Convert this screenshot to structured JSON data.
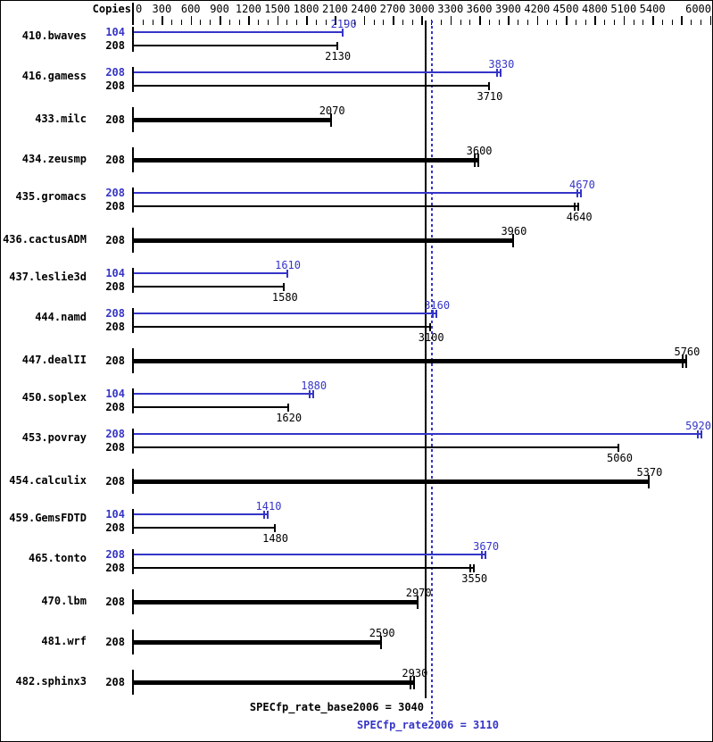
{
  "colors": {
    "peak_blue": "#3535c8",
    "base_black": "#000000",
    "background": "#ffffff",
    "border_black": "#000000"
  },
  "chart_data": {
    "type": "bar",
    "orientation": "horizontal",
    "xlabel_header": "Copies",
    "xlim": [
      0,
      6200
    ],
    "x_tick_interval_minor": 100,
    "x_tick_interval_major": 300,
    "x_axis_label_max": 6000,
    "x_labels_skipped": [
      5700
    ],
    "grid": false,
    "legend_position": "none",
    "reference_lines": [
      {
        "name": "base",
        "value": 3040,
        "style": "solid",
        "color": "base_black"
      },
      {
        "name": "peak",
        "value": 3110,
        "style": "dotted",
        "color": "peak_blue"
      }
    ],
    "benchmarks": [
      {
        "name": "410.bwaves",
        "bars": [
          {
            "set": "peak",
            "copies": "104",
            "value": 2190,
            "double_tick": false
          },
          {
            "set": "base",
            "copies": "208",
            "value": 2130,
            "double_tick": false
          }
        ]
      },
      {
        "name": "416.gamess",
        "bars": [
          {
            "set": "peak",
            "copies": "208",
            "value": 3830,
            "double_tick": true
          },
          {
            "set": "base",
            "copies": "208",
            "value": 3710,
            "double_tick": false
          }
        ]
      },
      {
        "name": "433.milc",
        "bars": [
          {
            "set": "base",
            "copies": "208",
            "value": 2070,
            "double_tick": false
          }
        ]
      },
      {
        "name": "434.zeusmp",
        "bars": [
          {
            "set": "base",
            "copies": "208",
            "value": 3600,
            "double_tick": true
          }
        ]
      },
      {
        "name": "435.gromacs",
        "bars": [
          {
            "set": "peak",
            "copies": "208",
            "value": 4670,
            "double_tick": true
          },
          {
            "set": "base",
            "copies": "208",
            "value": 4640,
            "double_tick": true
          }
        ]
      },
      {
        "name": "436.cactusADM",
        "bars": [
          {
            "set": "base",
            "copies": "208",
            "value": 3960,
            "double_tick": false
          }
        ]
      },
      {
        "name": "437.leslie3d",
        "bars": [
          {
            "set": "peak",
            "copies": "104",
            "value": 1610,
            "double_tick": false
          },
          {
            "set": "base",
            "copies": "208",
            "value": 1580,
            "double_tick": false
          }
        ]
      },
      {
        "name": "444.namd",
        "bars": [
          {
            "set": "peak",
            "copies": "208",
            "value": 3160,
            "double_tick": true
          },
          {
            "set": "base",
            "copies": "208",
            "value": 3100,
            "double_tick": false
          }
        ]
      },
      {
        "name": "447.dealII",
        "bars": [
          {
            "set": "base",
            "copies": "208",
            "value": 5760,
            "double_tick": true
          }
        ]
      },
      {
        "name": "450.soplex",
        "bars": [
          {
            "set": "peak",
            "copies": "104",
            "value": 1880,
            "double_tick": true
          },
          {
            "set": "base",
            "copies": "208",
            "value": 1620,
            "double_tick": false
          }
        ]
      },
      {
        "name": "453.povray",
        "bars": [
          {
            "set": "peak",
            "copies": "208",
            "value": 5920,
            "double_tick": true
          },
          {
            "set": "base",
            "copies": "208",
            "value": 5060,
            "double_tick": false
          }
        ]
      },
      {
        "name": "454.calculix",
        "bars": [
          {
            "set": "base",
            "copies": "208",
            "value": 5370,
            "double_tick": false
          }
        ]
      },
      {
        "name": "459.GemsFDTD",
        "bars": [
          {
            "set": "peak",
            "copies": "104",
            "value": 1410,
            "double_tick": true
          },
          {
            "set": "base",
            "copies": "208",
            "value": 1480,
            "double_tick": false
          }
        ]
      },
      {
        "name": "465.tonto",
        "bars": [
          {
            "set": "peak",
            "copies": "208",
            "value": 3670,
            "double_tick": true
          },
          {
            "set": "base",
            "copies": "208",
            "value": 3550,
            "double_tick": true
          }
        ]
      },
      {
        "name": "470.lbm",
        "bars": [
          {
            "set": "base",
            "copies": "208",
            "value": 2970,
            "double_tick": false
          }
        ]
      },
      {
        "name": "481.wrf",
        "bars": [
          {
            "set": "base",
            "copies": "208",
            "value": 2590,
            "double_tick": false
          }
        ]
      },
      {
        "name": "482.sphinx3",
        "bars": [
          {
            "set": "base",
            "copies": "208",
            "value": 2930,
            "double_tick": true
          }
        ]
      }
    ],
    "summary": {
      "base_label": "SPECfp_rate_base2006",
      "base_value": "3040",
      "peak_label": "SPECfp_rate2006",
      "peak_value": "3110",
      "equals_sign": "="
    }
  }
}
